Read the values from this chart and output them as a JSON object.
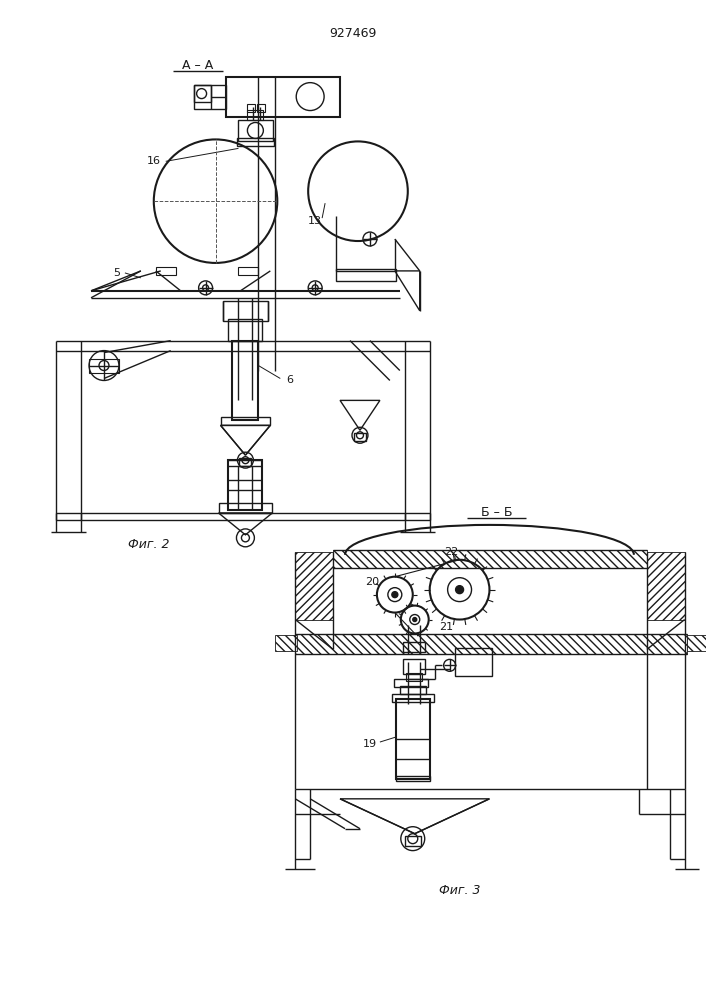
{
  "title": "927469",
  "bg_color": "#ffffff",
  "line_color": "#1a1a1a",
  "fig_width": 7.07,
  "fig_height": 10.0,
  "labels": {
    "AA": "А – А",
    "BB": "Б – Б",
    "fig2": "Фиг. 2",
    "fig3": "Фиг. 3",
    "num_5": "5",
    "num_6": "6",
    "num_13": "13",
    "num_16": "16",
    "num_19": "19",
    "num_20": "20",
    "num_21": "21",
    "num_22": "22"
  }
}
